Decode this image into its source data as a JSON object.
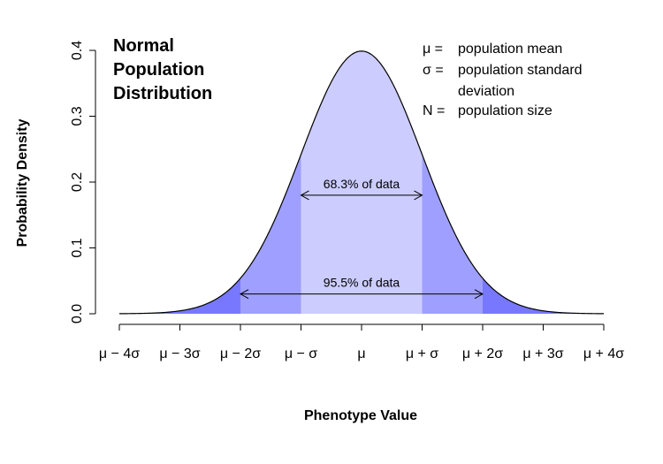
{
  "chart_data": {
    "type": "area",
    "title_lines": [
      "Normal",
      "Population",
      "Distribution"
    ],
    "xlabel": "Phenotype Value",
    "ylabel": "Probability Density",
    "xlim": [
      -4,
      4
    ],
    "ylim": [
      0,
      0.4
    ],
    "x_ticks": [
      -4,
      -3,
      -2,
      -1,
      0,
      1,
      2,
      3,
      4
    ],
    "x_tick_labels": [
      "μ − 4σ",
      "μ − 3σ",
      "μ − 2σ",
      "μ − σ",
      "μ",
      "μ + σ",
      "μ + 2σ",
      "μ + 3σ",
      "μ + 4σ"
    ],
    "y_ticks": [
      0.0,
      0.1,
      0.2,
      0.3,
      0.4
    ],
    "y_tick_labels": [
      "0.0",
      "0.1",
      "0.2",
      "0.3",
      "0.4"
    ],
    "curve": {
      "distribution": "normal",
      "mean": 0,
      "sd": 1
    },
    "bands": [
      {
        "from": -1,
        "to": 1,
        "color": "#ccccff"
      },
      {
        "from": -2,
        "to": -1,
        "color": "#9f9fff"
      },
      {
        "from": 1,
        "to": 2,
        "color": "#9f9fff"
      },
      {
        "from": -4,
        "to": -2,
        "color": "#7878ff"
      },
      {
        "from": 2,
        "to": 4,
        "color": "#7878ff"
      }
    ],
    "annotations": [
      {
        "label": "68.3% of data",
        "from": -1,
        "to": 1,
        "y": 0.18
      },
      {
        "label": "95.5% of data",
        "from": -2,
        "to": 2,
        "y": 0.03
      }
    ],
    "legend": [
      {
        "symbol": "μ =",
        "text": [
          "population mean"
        ]
      },
      {
        "symbol": "σ =",
        "text": [
          "population standard",
          "deviation"
        ]
      },
      {
        "symbol": "N =",
        "text": [
          "population size"
        ]
      }
    ],
    "grid": false
  }
}
